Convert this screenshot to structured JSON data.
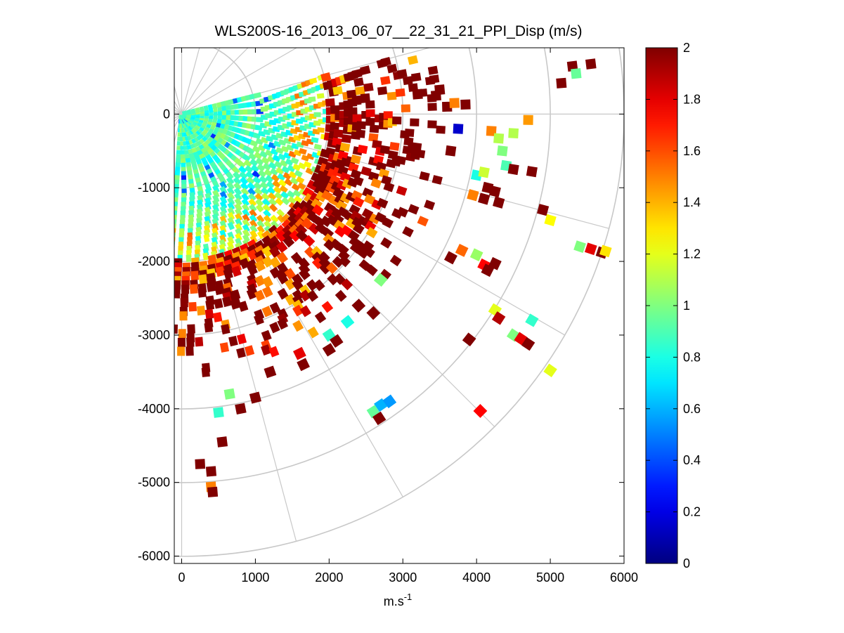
{
  "chart_data": {
    "type": "heatmap",
    "title": "WLS200S-16_2013_06_07__22_31_21_PPI_Disp (m/s)",
    "xlabel": "m.s",
    "xlabel_sup": "-1",
    "ylabel": "",
    "xlim": [
      -100,
      6000
    ],
    "ylim": [
      -6100,
      900
    ],
    "xticks": [
      0,
      1000,
      2000,
      3000,
      4000,
      5000,
      6000
    ],
    "xtick_labels": [
      "0",
      "1000",
      "2000",
      "3000",
      "4000",
      "5000",
      "6000"
    ],
    "yticks": [
      0,
      -1000,
      -2000,
      -3000,
      -4000,
      -5000,
      -6000
    ],
    "ytick_labels": [
      "0",
      "-1000",
      "-2000",
      "-3000",
      "-4000",
      "-5000",
      "-6000"
    ],
    "polar_grid": {
      "rings": [
        1000,
        2000,
        3000,
        4000,
        5000,
        6000
      ],
      "spokes_deg": [
        0,
        -30,
        -60,
        -90,
        30,
        60,
        90
      ]
    },
    "scan_sector_deg": [
      -94,
      15
    ],
    "colorbar": {
      "colormap": "jet",
      "min": 0,
      "max": 2,
      "ticks": [
        0,
        0.2,
        0.4,
        0.6,
        0.8,
        1,
        1.2,
        1.4,
        1.6,
        1.8,
        2
      ],
      "tick_labels": [
        "0",
        "0.2",
        "0.4",
        "0.6",
        "0.8",
        "1",
        "1.2",
        "1.4",
        "1.6",
        "1.8",
        "2"
      ]
    },
    "dense_field_note": "Near field (0-2000 m) values mostly 0.8-1.0, rising to 1.2-2 beyond ~2000 m",
    "sparse_points": [
      [
        5300,
        650,
        2.0
      ],
      [
        5550,
        680,
        2.0
      ],
      [
        5350,
        550,
        0.95
      ],
      [
        5150,
        420,
        2.0
      ],
      [
        3200,
        270,
        2.0
      ],
      [
        3450,
        250,
        2.0
      ],
      [
        3600,
        100,
        2.0
      ],
      [
        3850,
        130,
        2.0
      ],
      [
        3500,
        330,
        2.0
      ],
      [
        3700,
        150,
        1.5
      ],
      [
        3750,
        -200,
        0.15
      ],
      [
        4700,
        -80,
        1.45
      ],
      [
        4200,
        -230,
        1.5
      ],
      [
        4300,
        -330,
        1.1
      ],
      [
        4500,
        -260,
        1.1
      ],
      [
        4350,
        -500,
        1.0
      ],
      [
        3650,
        -500,
        2.0
      ],
      [
        4400,
        -700,
        0.9
      ],
      [
        4500,
        -750,
        2.0
      ],
      [
        4750,
        -780,
        2.0
      ],
      [
        4000,
        -830,
        0.8
      ],
      [
        4100,
        -790,
        1.15
      ],
      [
        4150,
        -1000,
        2.0
      ],
      [
        4250,
        -1050,
        2.0
      ],
      [
        4300,
        -1200,
        2.0
      ],
      [
        4100,
        -1150,
        2.0
      ],
      [
        3950,
        -1100,
        1.5
      ],
      [
        4900,
        -1300,
        2.0
      ],
      [
        5000,
        -1440,
        1.25
      ],
      [
        3800,
        -1850,
        1.55
      ],
      [
        4000,
        -1910,
        1.05
      ],
      [
        4100,
        -2050,
        1.75
      ],
      [
        4250,
        -2030,
        2.0
      ],
      [
        4150,
        -2120,
        2.0
      ],
      [
        3650,
        -1950,
        2.0
      ],
      [
        5400,
        -1800,
        1.0
      ],
      [
        5550,
        -1830,
        1.8
      ],
      [
        5700,
        -1880,
        2.0
      ],
      [
        5750,
        -1860,
        1.3
      ],
      [
        4250,
        -2660,
        1.2
      ],
      [
        4300,
        -2770,
        1.9
      ],
      [
        4750,
        -2800,
        0.85
      ],
      [
        4500,
        -3000,
        1.0
      ],
      [
        4600,
        -3050,
        1.8
      ],
      [
        4700,
        -3120,
        2.0
      ],
      [
        3900,
        -3060,
        2.0
      ],
      [
        5000,
        -3480,
        1.2
      ],
      [
        2700,
        -2250,
        1.0
      ],
      [
        2400,
        -2600,
        2.0
      ],
      [
        2600,
        -2700,
        2.0
      ],
      [
        2250,
        -2820,
        0.8
      ],
      [
        2000,
        -3000,
        0.85
      ],
      [
        2100,
        -3080,
        2.0
      ],
      [
        1600,
        -3250,
        1.8
      ],
      [
        1650,
        -3400,
        2.0
      ],
      [
        2000,
        -3200,
        2.0
      ],
      [
        1200,
        -3500,
        2.0
      ],
      [
        2700,
        -3950,
        0.6
      ],
      [
        2820,
        -3900,
        0.55
      ],
      [
        2600,
        -4040,
        0.95
      ],
      [
        2680,
        -4130,
        2.0
      ],
      [
        4050,
        -4030,
        1.75
      ],
      [
        650,
        -3800,
        1.0
      ],
      [
        1000,
        -3850,
        2.0
      ],
      [
        800,
        -4000,
        2.0
      ],
      [
        500,
        -4050,
        0.85
      ],
      [
        550,
        -4450,
        2.0
      ],
      [
        250,
        -4750,
        2.0
      ],
      [
        400,
        -4850,
        2.0
      ],
      [
        400,
        -5060,
        1.5
      ],
      [
        420,
        -5130,
        2.0
      ]
    ]
  }
}
